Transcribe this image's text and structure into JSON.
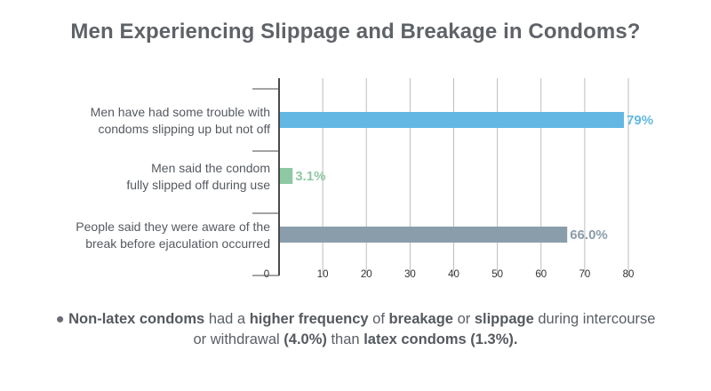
{
  "title": "Men Experiencing Slippage and Breakage in Condoms?",
  "chart_data": {
    "type": "bar",
    "orientation": "horizontal",
    "title": "Men Experiencing Slippage and Breakage in Condoms?",
    "xlim": [
      0,
      80
    ],
    "xticks": [
      0,
      10,
      20,
      30,
      40,
      50,
      60,
      70,
      80
    ],
    "grid": true,
    "legend": "none",
    "bars": [
      {
        "label_lines": [
          "Men have had some trouble with",
          "condoms slipping up but not off"
        ],
        "value": 79,
        "value_label": "79%",
        "color": "#62b8e2"
      },
      {
        "label_lines": [
          "Men said the condom",
          "fully slipped off during use"
        ],
        "value": 3.1,
        "value_label": "3.1%",
        "color": "#8ec9a3"
      },
      {
        "label_lines": [
          "People said they were aware of the",
          "break before ejaculation occurred"
        ],
        "value": 66.0,
        "value_label": "66.0%",
        "color": "#8a9daa"
      }
    ]
  },
  "footnote": {
    "bullet": "●",
    "parts": [
      {
        "text": "Non-latex condoms",
        "bold": true
      },
      {
        "text": " had a ",
        "bold": false
      },
      {
        "text": "higher frequency",
        "bold": true
      },
      {
        "text": " of ",
        "bold": false
      },
      {
        "text": "breakage",
        "bold": true
      },
      {
        "text": " or ",
        "bold": false
      },
      {
        "text": "slippage",
        "bold": true
      },
      {
        "text": " during intercourse or withdrawal ",
        "bold": false
      },
      {
        "text": "(4.0%)",
        "bold": true
      },
      {
        "text": " than ",
        "bold": false
      },
      {
        "text": "latex condoms (1.3%).",
        "bold": true
      }
    ]
  }
}
